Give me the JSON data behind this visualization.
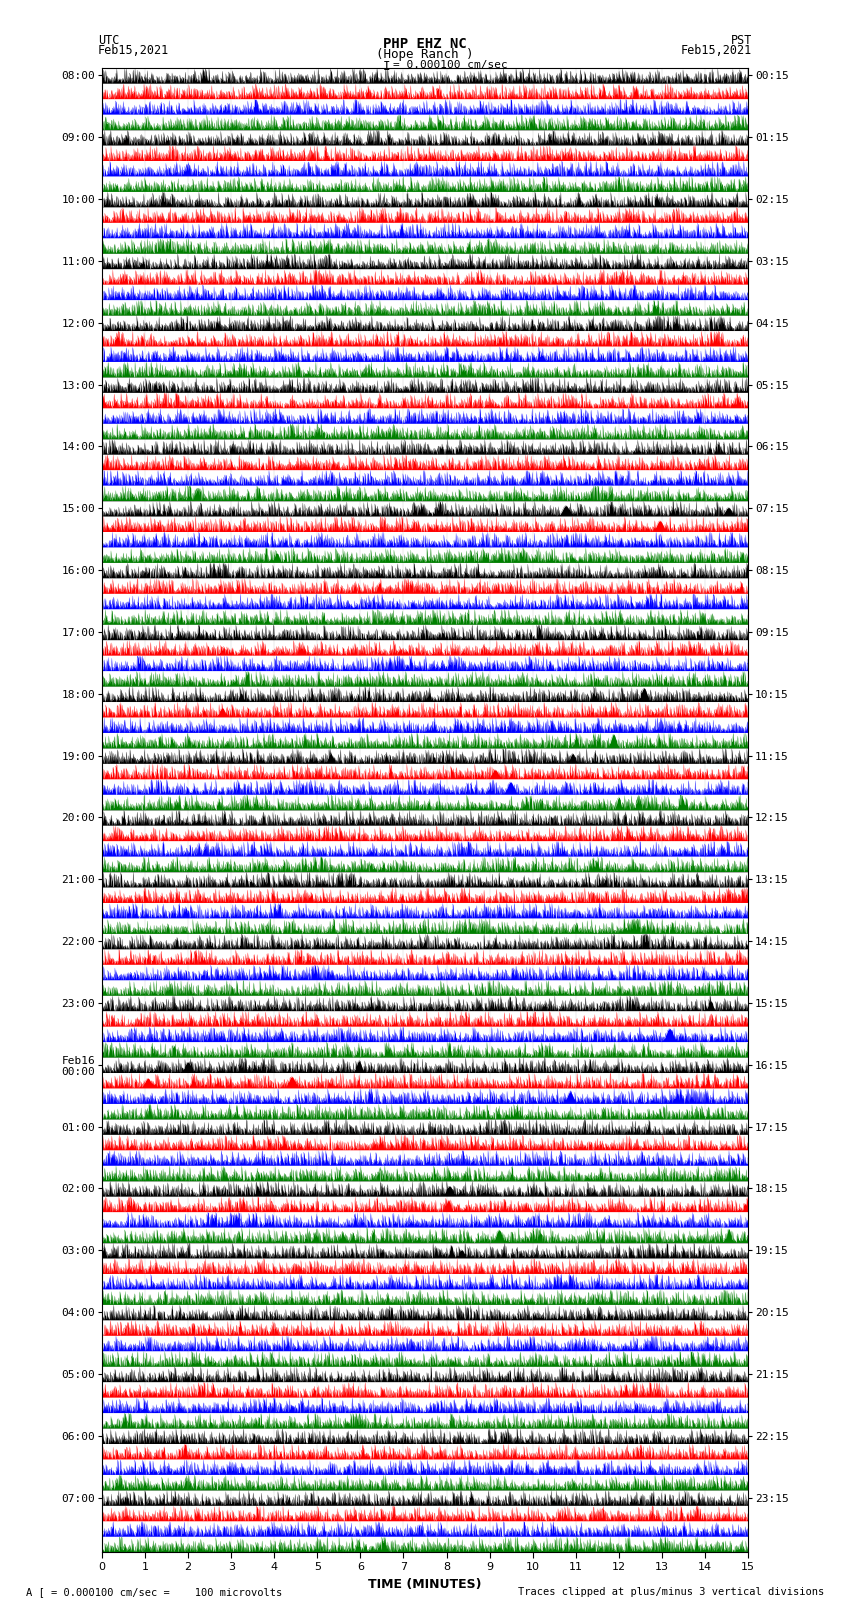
{
  "title_line1": "PHP EHZ NC",
  "title_line2": "(Hope Ranch )",
  "title_line3": "I = 0.000100 cm/sec",
  "left_header_line1": "UTC",
  "left_header_line2": "Feb15,2021",
  "right_header_line1": "PST",
  "right_header_line2": "Feb15,2021",
  "xlabel": "TIME (MINUTES)",
  "footer_left": "A [ = 0.000100 cm/sec =    100 microvolts",
  "footer_right": "Traces clipped at plus/minus 3 vertical divisions",
  "trace_colors": [
    "black",
    "red",
    "blue",
    "green"
  ],
  "utc_times": [
    "08:00",
    "09:00",
    "10:00",
    "11:00",
    "12:00",
    "13:00",
    "14:00",
    "15:00",
    "16:00",
    "17:00",
    "18:00",
    "19:00",
    "20:00",
    "21:00",
    "22:00",
    "23:00",
    "Feb16\n00:00",
    "01:00",
    "02:00",
    "03:00",
    "04:00",
    "05:00",
    "06:00",
    "07:00"
  ],
  "pst_times": [
    "00:15",
    "01:15",
    "02:15",
    "03:15",
    "04:15",
    "05:15",
    "06:15",
    "07:15",
    "08:15",
    "09:15",
    "10:15",
    "11:15",
    "12:15",
    "13:15",
    "14:15",
    "15:15",
    "16:15",
    "17:15",
    "18:15",
    "19:15",
    "20:15",
    "21:15",
    "22:15",
    "23:15"
  ],
  "n_rows": 24,
  "n_traces_per_row": 4,
  "minutes": 15,
  "bg_color": "white",
  "plot_bg": "white",
  "font_size_header": 9,
  "font_size_axis": 8,
  "font_size_footer": 7.5
}
